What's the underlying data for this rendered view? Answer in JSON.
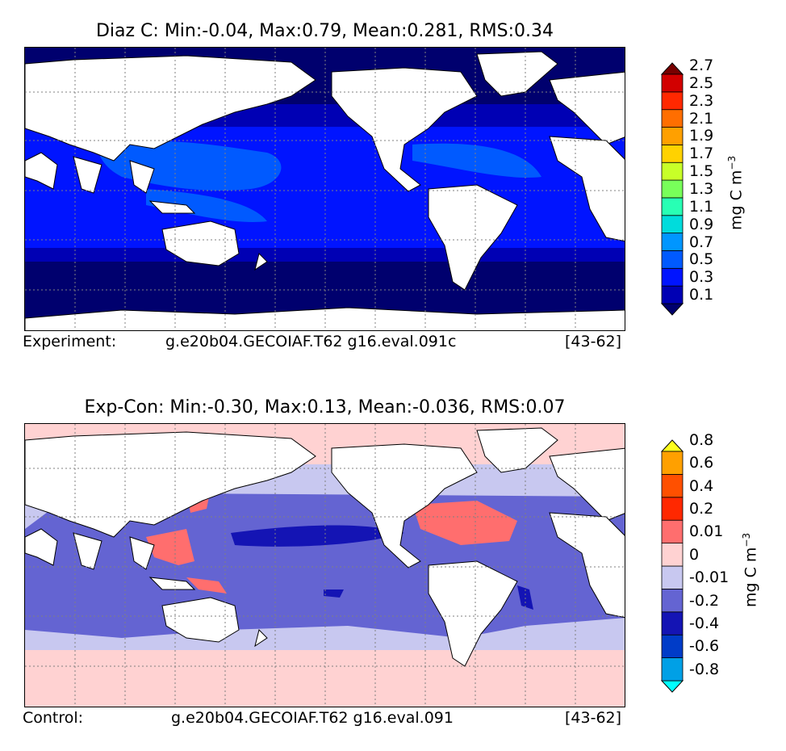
{
  "panels": [
    {
      "title": "Diaz C: Min:-0.04, Max:0.79, Mean:0.281, RMS:0.34",
      "caption_left": "Experiment:",
      "caption_mid": "g.e20b04.GECOIAF.T62 g16.eval.091c",
      "caption_right": "[43-62]",
      "unit": "mg C m",
      "unit_exp": "−3",
      "colorbar": {
        "colors": [
          "#00006e",
          "#0000b4",
          "#0014ff",
          "#005aff",
          "#0096ff",
          "#00dcdc",
          "#28ffb4",
          "#78ff5a",
          "#c8ff28",
          "#ffd200",
          "#ffa000",
          "#ff6e00",
          "#ff2800",
          "#d20000",
          "#780000"
        ],
        "labels": [
          "0.1",
          "0.3",
          "0.5",
          "0.7",
          "0.9",
          "1.1",
          "1.3",
          "1.5",
          "1.7",
          "1.9",
          "2.1",
          "2.3",
          "2.5",
          "2.7"
        ]
      }
    },
    {
      "title": "Exp-Con: Min:-0.30, Max:0.13, Mean:-0.036, RMS:0.07",
      "caption_left": "Control:",
      "caption_mid": "g.e20b04.GECOIAF.T62 g16.eval.091",
      "caption_right": "[43-62]",
      "unit": "mg C m",
      "unit_exp": "−3",
      "colorbar": {
        "colors": [
          "#00ffff",
          "#00a0e6",
          "#003cc8",
          "#1414b4",
          "#6464d2",
          "#c8c8f0",
          "#ffd2d2",
          "#ff6e6e",
          "#ff2800",
          "#ff5000",
          "#ffa000",
          "#ffff1e"
        ],
        "labels": [
          "-0.8",
          "-0.6",
          "-0.4",
          "-0.2",
          "-0.01",
          "0",
          "0.01",
          "0.2",
          "0.4",
          "0.6",
          "0.8"
        ]
      }
    }
  ],
  "colors": {
    "land": "#ffffff",
    "coastline": "#000000",
    "gridline": "#808080"
  }
}
